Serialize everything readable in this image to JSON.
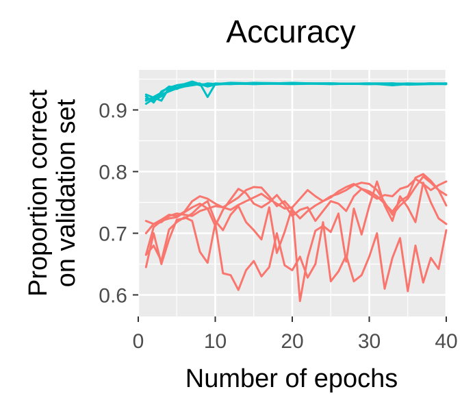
{
  "chart_data": {
    "type": "line",
    "title": "Accuracy",
    "xlabel": "Number of epochs",
    "ylabel": [
      "Proportion correct",
      "on validation set"
    ],
    "xlim": [
      0,
      40
    ],
    "ylim": [
      0.565,
      0.965
    ],
    "x_ticks": [
      0,
      10,
      20,
      30,
      40
    ],
    "x_tick_labels": [
      "0",
      "10",
      "20",
      "30",
      "40"
    ],
    "y_ticks": [
      0.6,
      0.7,
      0.8,
      0.9
    ],
    "y_tick_labels": [
      "0.6",
      "0.7",
      "0.8",
      "0.9"
    ],
    "grid": true,
    "legend": "none",
    "colors": {
      "high_group": "#00BFC4",
      "low_group": "#F8766D",
      "panel_bg": "#EBEBEB",
      "grid": "#FFFFFF",
      "tick": "#333333"
    },
    "series": [
      {
        "group": "high",
        "x": [
          1,
          2,
          3,
          4,
          5,
          6,
          7,
          8,
          9,
          10,
          12,
          15,
          20,
          25,
          30,
          33,
          35,
          38,
          40
        ],
        "values": [
          0.91,
          0.918,
          0.925,
          0.93,
          0.935,
          0.938,
          0.94,
          0.942,
          0.941,
          0.942,
          0.942,
          0.943,
          0.943,
          0.943,
          0.942,
          0.943,
          0.942,
          0.943,
          0.942
        ]
      },
      {
        "group": "high",
        "x": [
          1,
          2,
          3,
          4,
          5,
          6,
          7,
          8,
          9,
          10,
          12,
          15,
          20,
          25,
          30,
          33,
          35,
          38,
          40
        ],
        "values": [
          0.922,
          0.912,
          0.93,
          0.936,
          0.94,
          0.942,
          0.946,
          0.942,
          0.938,
          0.941,
          0.943,
          0.942,
          0.944,
          0.942,
          0.943,
          0.94,
          0.942,
          0.943,
          0.943
        ]
      },
      {
        "group": "high",
        "x": [
          1,
          2,
          3,
          4,
          5,
          6,
          7,
          8,
          9,
          10,
          12,
          15,
          20,
          25,
          30,
          33,
          35,
          38,
          40
        ],
        "values": [
          0.925,
          0.92,
          0.915,
          0.936,
          0.934,
          0.94,
          0.944,
          0.94,
          0.943,
          0.942,
          0.944,
          0.943,
          0.942,
          0.943,
          0.942,
          0.942,
          0.943,
          0.942,
          0.942
        ]
      },
      {
        "group": "high",
        "x": [
          1,
          2,
          3,
          4,
          5,
          6,
          7,
          8,
          9,
          10,
          12,
          15,
          20,
          25,
          30,
          33,
          35,
          38,
          40
        ],
        "values": [
          0.915,
          0.921,
          0.928,
          0.938,
          0.936,
          0.94,
          0.943,
          0.941,
          0.94,
          0.943,
          0.942,
          0.944,
          0.943,
          0.942,
          0.943,
          0.943,
          0.942,
          0.943,
          0.942
        ]
      },
      {
        "group": "high",
        "x": [
          1,
          2,
          3,
          4,
          5,
          6,
          7,
          8,
          9,
          10,
          12,
          15,
          20,
          25,
          30,
          33,
          35,
          38,
          40
        ],
        "values": [
          0.918,
          0.916,
          0.922,
          0.932,
          0.94,
          0.941,
          0.942,
          0.943,
          0.921,
          0.942,
          0.943,
          0.942,
          0.943,
          0.943,
          0.942,
          0.943,
          0.941,
          0.942,
          0.943
        ]
      },
      {
        "group": "low",
        "x": [
          1,
          2,
          3,
          4,
          5,
          6,
          7,
          8,
          9,
          10,
          11,
          12,
          13,
          14,
          15,
          16,
          17,
          18,
          19,
          20,
          21,
          22,
          23,
          24,
          25,
          26,
          27,
          28,
          29,
          30,
          31,
          32,
          33,
          34,
          35,
          36,
          37,
          38,
          39,
          40
        ],
        "values": [
          0.72,
          0.715,
          0.718,
          0.728,
          0.732,
          0.73,
          0.728,
          0.736,
          0.74,
          0.744,
          0.742,
          0.738,
          0.746,
          0.752,
          0.758,
          0.764,
          0.755,
          0.748,
          0.74,
          0.742,
          0.756,
          0.77,
          0.76,
          0.752,
          0.758,
          0.768,
          0.775,
          0.78,
          0.772,
          0.764,
          0.756,
          0.762,
          0.76,
          0.772,
          0.776,
          0.788,
          0.78,
          0.77,
          0.778,
          0.784
        ]
      },
      {
        "group": "low",
        "x": [
          1,
          2,
          3,
          4,
          5,
          6,
          7,
          8,
          9,
          10,
          11,
          12,
          13,
          14,
          15,
          16,
          17,
          18,
          19,
          20,
          21,
          22,
          23,
          24,
          25,
          26,
          27,
          28,
          29,
          30,
          31,
          32,
          33,
          34,
          35,
          36,
          37,
          38,
          39,
          40
        ],
        "values": [
          0.7,
          0.715,
          0.722,
          0.73,
          0.728,
          0.735,
          0.752,
          0.76,
          0.756,
          0.748,
          0.742,
          0.75,
          0.758,
          0.77,
          0.775,
          0.774,
          0.76,
          0.744,
          0.752,
          0.738,
          0.724,
          0.736,
          0.745,
          0.752,
          0.76,
          0.764,
          0.77,
          0.778,
          0.782,
          0.78,
          0.77,
          0.75,
          0.73,
          0.745,
          0.756,
          0.775,
          0.792,
          0.782,
          0.77,
          0.745
        ]
      },
      {
        "group": "low",
        "x": [
          1,
          2,
          3,
          4,
          5,
          6,
          7,
          8,
          9,
          10,
          11,
          12,
          13,
          14,
          15,
          16,
          17,
          18,
          19,
          20,
          21,
          22,
          23,
          24,
          25,
          26,
          27,
          28,
          29,
          30,
          31,
          32,
          33,
          34,
          35,
          36,
          37,
          38,
          39,
          40
        ],
        "values": [
          0.665,
          0.71,
          0.72,
          0.724,
          0.726,
          0.734,
          0.742,
          0.748,
          0.74,
          0.712,
          0.738,
          0.755,
          0.772,
          0.765,
          0.748,
          0.742,
          0.75,
          0.762,
          0.746,
          0.728,
          0.738,
          0.742,
          0.72,
          0.736,
          0.752,
          0.748,
          0.736,
          0.76,
          0.772,
          0.768,
          0.76,
          0.748,
          0.735,
          0.752,
          0.76,
          0.79,
          0.796,
          0.785,
          0.77,
          0.762
        ]
      },
      {
        "group": "low",
        "x": [
          1,
          2,
          3,
          4,
          5,
          6,
          7,
          8,
          9,
          10,
          11,
          12,
          13,
          14,
          15,
          16,
          17,
          18,
          19,
          20,
          21,
          22,
          23,
          24,
          25,
          26,
          27,
          28,
          29,
          30,
          31,
          32,
          33,
          34,
          35,
          36,
          37,
          38,
          39,
          40
        ],
        "values": [
          0.645,
          0.7,
          0.65,
          0.69,
          0.722,
          0.724,
          0.732,
          0.744,
          0.752,
          0.72,
          0.705,
          0.73,
          0.744,
          0.718,
          0.705,
          0.69,
          0.742,
          0.668,
          0.702,
          0.742,
          0.59,
          0.66,
          0.704,
          0.712,
          0.702,
          0.732,
          0.654,
          0.74,
          0.698,
          0.744,
          0.784,
          0.745,
          0.72,
          0.76,
          0.742,
          0.718,
          0.782,
          0.75,
          0.724,
          0.715
        ]
      },
      {
        "group": "low",
        "x": [
          1,
          2,
          3,
          4,
          5,
          6,
          7,
          8,
          9,
          10,
          11,
          12,
          13,
          14,
          15,
          16,
          17,
          18,
          19,
          20,
          21,
          22,
          23,
          24,
          25,
          26,
          27,
          28,
          29,
          30,
          31,
          32,
          33,
          34,
          35,
          36,
          37,
          38,
          39,
          40
        ],
        "values": [
          0.665,
          0.68,
          0.655,
          0.706,
          0.718,
          0.726,
          0.72,
          0.67,
          0.652,
          0.716,
          0.635,
          0.632,
          0.608,
          0.64,
          0.655,
          0.63,
          0.645,
          0.7,
          0.648,
          0.64,
          0.662,
          0.628,
          0.65,
          0.718,
          0.622,
          0.638,
          0.664,
          0.622,
          0.632,
          0.662,
          0.7,
          0.61,
          0.66,
          0.692,
          0.606,
          0.68,
          0.62,
          0.66,
          0.642,
          0.705
        ]
      }
    ]
  }
}
